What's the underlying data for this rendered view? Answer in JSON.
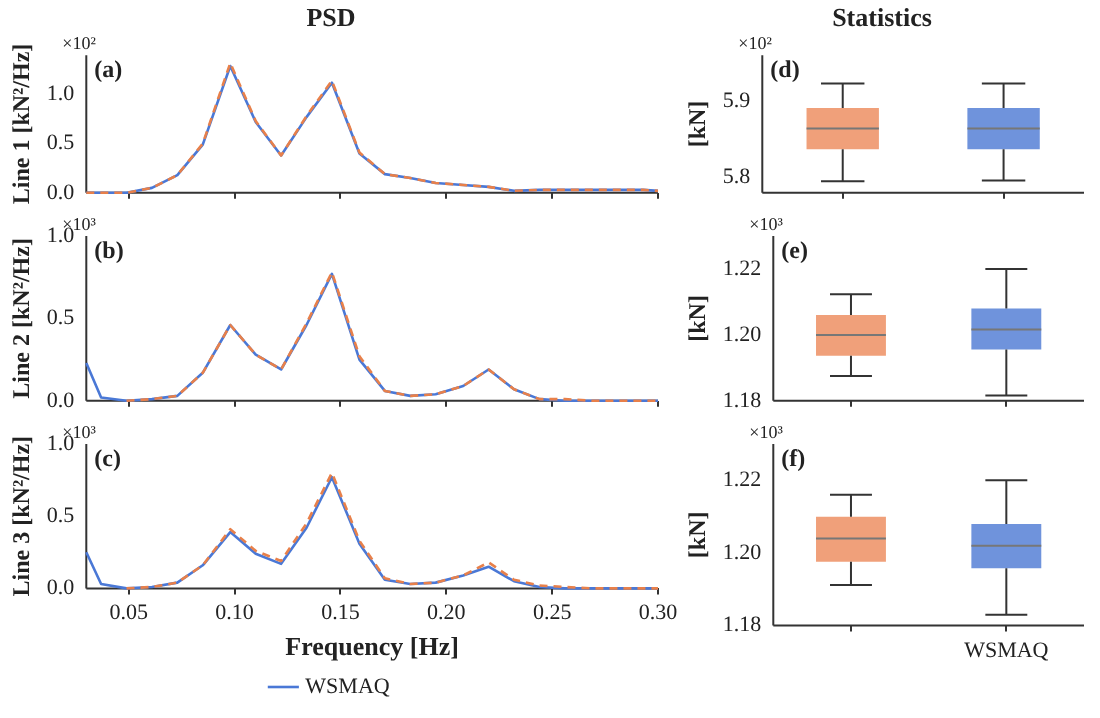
{
  "chart_data": [
    {
      "type": "line",
      "title": "PSD",
      "ylabel": "Line 1 [kN²/Hz]",
      "annotations": [
        "(a)",
        "×10²"
      ],
      "tick_labels": "y",
      "x": [
        0.03,
        0.037,
        0.049,
        0.061,
        0.073,
        0.085,
        0.098,
        0.11,
        0.122,
        0.134,
        0.146,
        0.159,
        0.171,
        0.183,
        0.195,
        0.208,
        0.22,
        0.232,
        0.244,
        0.256,
        0.269,
        0.281,
        0.293,
        0.3
      ],
      "series": [
        {
          "color": "#4a78d6",
          "line_style": "solid",
          "values": [
            0.0,
            0.0,
            0.0,
            0.05,
            0.18,
            0.49,
            1.29,
            0.72,
            0.38,
            0.77,
            1.12,
            0.4,
            0.19,
            0.15,
            0.1,
            0.08,
            0.06,
            0.02,
            0.03,
            0.03,
            0.03,
            0.03,
            0.03,
            0.02
          ]
        },
        {
          "color": "#e8804a",
          "line_style": "dashed",
          "values": [
            0.0,
            0.0,
            0.0,
            0.05,
            0.18,
            0.5,
            1.32,
            0.73,
            0.38,
            0.78,
            1.14,
            0.41,
            0.19,
            0.15,
            0.1,
            0.08,
            0.06,
            0.02,
            0.03,
            0.03,
            0.03,
            0.03,
            0.03,
            0.02
          ]
        }
      ],
      "xlim": [
        0.03,
        0.3
      ],
      "xticks": [
        0.05,
        0.1,
        0.15,
        0.2,
        0.25,
        0.3
      ],
      "ylim": [
        0,
        1.4
      ],
      "yticks": [
        {
          "value": 0,
          "label": "0.0"
        },
        0.5,
        {
          "value": 1,
          "label": "1.0"
        }
      ]
    },
    {
      "type": "line",
      "ylabel": "Line 2 [kN²/Hz]",
      "annotations": [
        "(b)",
        "×10³"
      ],
      "tick_labels": "y",
      "x": [
        0.03,
        0.037,
        0.049,
        0.061,
        0.073,
        0.085,
        0.098,
        0.11,
        0.122,
        0.134,
        0.146,
        0.159,
        0.171,
        0.183,
        0.195,
        0.208,
        0.22,
        0.232,
        0.244,
        0.256,
        0.269,
        0.281,
        0.293,
        0.3
      ],
      "series": [
        {
          "color": "#4a78d6",
          "line_style": "solid",
          "values": [
            0.23,
            0.02,
            0.0,
            0.01,
            0.03,
            0.17,
            0.46,
            0.28,
            0.19,
            0.46,
            0.77,
            0.25,
            0.06,
            0.03,
            0.04,
            0.09,
            0.19,
            0.07,
            0.01,
            0.0,
            0.0,
            0.0,
            0.0,
            0.0
          ]
        },
        {
          "color": "#e8804a",
          "line_style": "dashed",
          "values": [
            null,
            null,
            0.0,
            0.01,
            0.03,
            0.17,
            0.46,
            0.28,
            0.19,
            0.47,
            0.78,
            0.27,
            0.06,
            0.03,
            0.04,
            0.09,
            0.19,
            0.07,
            0.01,
            0.01,
            0.0,
            0.0,
            0.0,
            0.0
          ]
        }
      ],
      "xlim": [
        0.03,
        0.3
      ],
      "xticks": [
        0.05,
        0.1,
        0.15,
        0.2,
        0.25,
        0.3
      ],
      "ylim": [
        0,
        1
      ],
      "yticks": [
        {
          "value": 0,
          "label": "0.0"
        },
        0.5,
        {
          "value": 1,
          "label": "1.0"
        }
      ]
    },
    {
      "type": "line",
      "xlabel": "Frequency [Hz]",
      "ylabel": "Line 3 [kN²/Hz]",
      "annotations": [
        "(c)",
        "×10³"
      ],
      "legend": "bottom",
      "x": [
        0.03,
        0.037,
        0.049,
        0.061,
        0.073,
        0.085,
        0.098,
        0.11,
        0.122,
        0.134,
        0.146,
        0.159,
        0.171,
        0.183,
        0.195,
        0.208,
        0.22,
        0.232,
        0.244,
        0.256,
        0.269,
        0.281,
        0.293,
        0.3
      ],
      "series": [
        {
          "name": "WSMAQ",
          "color": "#4a78d6",
          "line_style": "solid",
          "values": [
            0.25,
            0.03,
            0.0,
            0.01,
            0.04,
            0.16,
            0.39,
            0.24,
            0.17,
            0.42,
            0.77,
            0.31,
            0.06,
            0.03,
            0.04,
            0.09,
            0.15,
            0.05,
            0.01,
            0.0,
            0.0,
            0.0,
            0.0,
            0.0
          ]
        },
        {
          "color": "#e8804a",
          "line_style": "dashed",
          "values": [
            null,
            null,
            0.0,
            0.01,
            0.04,
            0.16,
            0.41,
            0.26,
            0.19,
            0.45,
            0.8,
            0.33,
            0.07,
            0.03,
            0.04,
            0.09,
            0.18,
            0.06,
            0.02,
            0.01,
            0.0,
            0.0,
            0.0,
            0.0
          ]
        }
      ],
      "xlim": [
        0.03,
        0.3
      ],
      "xticks": [
        0.05,
        {
          "value": 0.1,
          "label": "0.10"
        },
        0.15,
        {
          "value": 0.2,
          "label": "0.20"
        },
        0.25,
        {
          "value": 0.3,
          "label": "0.30"
        }
      ],
      "ylim": [
        0,
        1
      ],
      "yticks": [
        {
          "value": 0,
          "label": "0.0"
        },
        0.5,
        {
          "value": 1,
          "label": "1.0"
        }
      ]
    },
    {
      "type": "box",
      "title": "Statistics",
      "ylabel": "[kN]",
      "annotations": [
        "(d)",
        "×10²"
      ],
      "tick_labels": "y",
      "categories": [
        null,
        null
      ],
      "colors": [
        "#f0a07a",
        "#6f93dc"
      ],
      "boxes": [
        {
          "low": 5.795,
          "q1": 5.837,
          "median": 5.864,
          "q3": 5.891,
          "high": 5.923
        },
        {
          "low": 5.796,
          "q1": 5.837,
          "median": 5.864,
          "q3": 5.891,
          "high": 5.923
        }
      ],
      "ylim": [
        5.78,
        5.96
      ],
      "yticks": [
        5.8,
        5.9
      ]
    },
    {
      "type": "box",
      "ylabel": "[kN]",
      "annotations": [
        "(e)",
        "×10³"
      ],
      "tick_labels": "y",
      "categories": [
        null,
        null
      ],
      "colors": [
        "#f0a07a",
        "#6f93dc"
      ],
      "boxes": [
        {
          "low": 1.1875,
          "q1": 1.1937,
          "median": 1.2,
          "q3": 1.206,
          "high": 1.2123
        },
        {
          "low": 1.1816,
          "q1": 1.1956,
          "median": 1.2016,
          "q3": 1.208,
          "high": 1.22
        }
      ],
      "ylim": [
        1.18,
        1.23
      ],
      "yticks": [
        1.18,
        {
          "value": 1.2,
          "label": "1.20"
        },
        1.22
      ]
    },
    {
      "type": "box",
      "ylabel": "[kN]",
      "annotations": [
        "(f)",
        "×10³"
      ],
      "categories": [
        null,
        "WSMAQ"
      ],
      "colors": [
        "#f0a07a",
        "#6f93dc"
      ],
      "boxes": [
        {
          "low": 1.1912,
          "q1": 1.1976,
          "median": 1.204,
          "q3": 1.21,
          "high": 1.216
        },
        {
          "low": 1.183,
          "q1": 1.1958,
          "median": 1.202,
          "q3": 1.208,
          "high": 1.22
        }
      ],
      "ylim": [
        1.18,
        1.23
      ],
      "yticks": [
        1.18,
        {
          "value": 1.2,
          "label": "1.20"
        },
        1.22
      ]
    }
  ]
}
